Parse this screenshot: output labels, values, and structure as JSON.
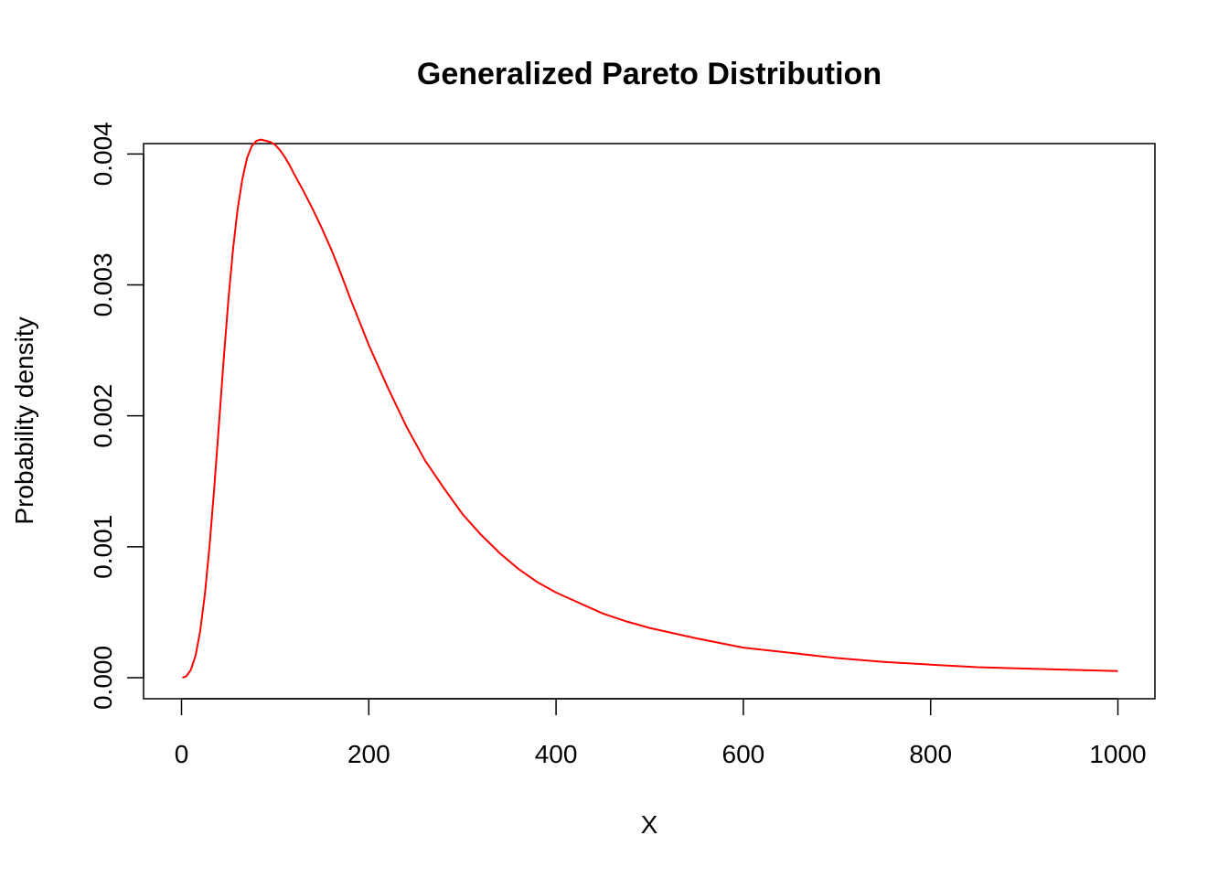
{
  "chart_data": {
    "type": "line",
    "title": "Generalized Pareto Distribution",
    "xlabel": "X",
    "ylabel": "Probability density",
    "xlim": [
      0,
      1000
    ],
    "ylim": [
      0,
      0.0041
    ],
    "x_ticks": [
      0,
      200,
      400,
      600,
      800,
      1000
    ],
    "x_tick_labels": [
      "0",
      "200",
      "400",
      "600",
      "800",
      "1000"
    ],
    "y_ticks": [
      0,
      0.001,
      0.002,
      0.003,
      0.004
    ],
    "y_tick_labels": [
      "0.000",
      "0.001",
      "0.002",
      "0.003",
      "0.004"
    ],
    "grid": false,
    "box": true,
    "series": [
      {
        "color": "#ff0000",
        "x": [
          1,
          5,
          10,
          15,
          20,
          25,
          30,
          35,
          40,
          45,
          50,
          55,
          60,
          65,
          70,
          75,
          80,
          85,
          90,
          95,
          100,
          105,
          110,
          115,
          120,
          130,
          140,
          150,
          160,
          170,
          180,
          190,
          200,
          220,
          240,
          260,
          280,
          300,
          320,
          340,
          360,
          380,
          400,
          425,
          450,
          475,
          500,
          550,
          600,
          650,
          700,
          750,
          800,
          850,
          900,
          950,
          1000
        ],
        "y": [
          0.0,
          1e-05,
          6e-05,
          0.00017,
          0.00036,
          0.00064,
          0.00101,
          0.00145,
          0.00194,
          0.00243,
          0.00288,
          0.00327,
          0.00358,
          0.00381,
          0.00397,
          0.00406,
          0.0041,
          0.00411,
          0.0041,
          0.00409,
          0.00407,
          0.00403,
          0.00398,
          0.00392,
          0.00385,
          0.00372,
          0.00358,
          0.00343,
          0.00327,
          0.00309,
          0.0029,
          0.00272,
          0.00254,
          0.00222,
          0.00192,
          0.00166,
          0.00145,
          0.00125,
          0.00109,
          0.00095,
          0.00083,
          0.00073,
          0.00065,
          0.00057,
          0.00049,
          0.00043,
          0.00038,
          0.0003,
          0.00023,
          0.00019,
          0.00015,
          0.00012,
          0.0001,
          8e-05,
          7e-05,
          6e-05,
          5e-05
        ]
      }
    ]
  }
}
